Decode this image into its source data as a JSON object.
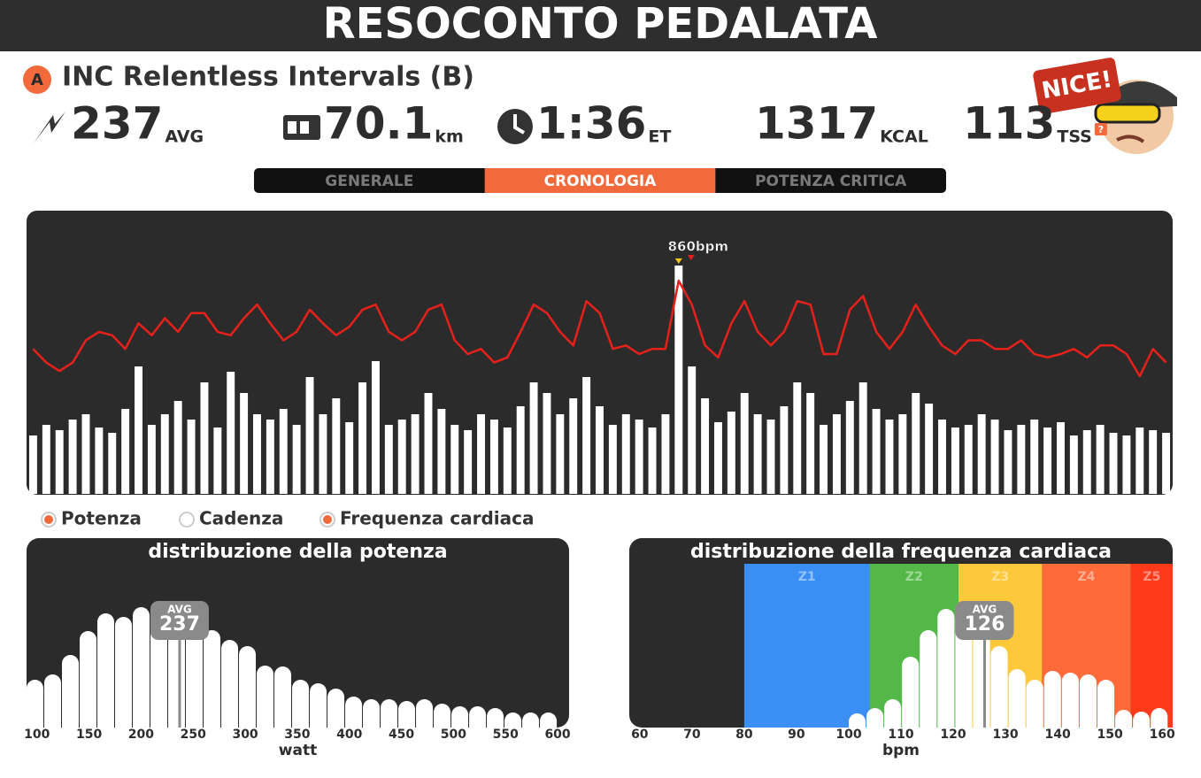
{
  "header": {
    "title": "RESOCONTO PEDALATA"
  },
  "ride": {
    "badge": "A",
    "name": "INC Relentless Intervals (B)"
  },
  "stats": [
    {
      "value": 237,
      "unit": "AVG"
    },
    {
      "value": 70.1,
      "unit": "km"
    },
    {
      "value": "1:36",
      "unit": "ET"
    },
    {
      "value": 1317,
      "unit": "KCAL"
    },
    {
      "value": 113,
      "unit": "TSS",
      "help": "?"
    }
  ],
  "avatar": {
    "text": "NICE!"
  },
  "tabs": {
    "items": [
      "GENERALE",
      "CRONOLOGIA",
      "POTENZA CRITICA"
    ],
    "active": 1
  },
  "legend": {
    "items": [
      "Potenza",
      "Cadenza",
      "Frequenza cardiaca"
    ],
    "selected": [
      true,
      false,
      true
    ]
  },
  "chart_data": [
    {
      "type": "timeline",
      "marker_label": "860bpm",
      "ylim": [
        0,
        1060
      ],
      "y2lim": [
        40,
        205
      ],
      "series": [
        {
          "color": "#ffffff",
          "values": [
            220,
            260,
            240,
            280,
            300,
            250,
            230,
            320,
            480,
            260,
            300,
            350,
            280,
            420,
            250,
            460,
            380,
            300,
            280,
            320,
            260,
            440,
            300,
            360,
            270,
            420,
            500,
            260,
            280,
            300,
            380,
            320,
            260,
            240,
            300,
            280,
            250,
            330,
            420,
            380,
            300,
            360,
            440,
            330,
            260,
            300,
            280,
            250,
            300,
            860,
            480,
            360,
            270,
            310,
            380,
            300,
            280,
            330,
            420,
            380,
            260,
            300,
            350,
            420,
            320,
            280,
            300,
            380,
            340,
            280,
            250,
            260,
            300,
            280,
            240,
            260,
            280,
            250,
            270,
            220,
            240,
            260,
            230,
            220,
            250,
            240,
            230
          ]
        },
        {
          "color": "#e8201a",
          "axis": "y2",
          "values": [
            125,
            117,
            112,
            117,
            130,
            135,
            133,
            125,
            140,
            133,
            143,
            135,
            146,
            146,
            135,
            133,
            143,
            151,
            140,
            130,
            135,
            148,
            140,
            133,
            138,
            148,
            151,
            135,
            130,
            135,
            148,
            151,
            130,
            122,
            125,
            117,
            120,
            135,
            151,
            146,
            135,
            127,
            153,
            146,
            125,
            127,
            122,
            125,
            125,
            165,
            151,
            127,
            120,
            140,
            153,
            135,
            127,
            135,
            153,
            151,
            122,
            122,
            148,
            156,
            135,
            125,
            135,
            151,
            138,
            127,
            122,
            130,
            130,
            125,
            125,
            130,
            122,
            120,
            122,
            125,
            120,
            127,
            127,
            122,
            109,
            125,
            117
          ]
        }
      ]
    },
    {
      "type": "histogram",
      "title": "distribuzione della potenza",
      "xlabel": "watt",
      "color": "#ffffff",
      "bins": [
        90,
        107,
        124,
        141,
        158,
        175,
        192,
        209,
        226,
        243,
        260,
        277,
        294,
        311,
        328,
        345,
        362,
        379,
        396,
        413,
        430,
        447,
        464,
        481,
        498,
        515,
        532,
        549,
        566,
        583,
        600
      ],
      "values": [
        54,
        60,
        82,
        109,
        129,
        125,
        136,
        134,
        136,
        122,
        110,
        99,
        92,
        70,
        69,
        54,
        50,
        44,
        35,
        32,
        32,
        30,
        32,
        27,
        24,
        24,
        22,
        17,
        17,
        17
      ],
      "xlim": [
        90,
        611
      ],
      "ylim": [
        0,
        200
      ],
      "xticks": [
        100,
        150,
        200,
        250,
        300,
        350,
        400,
        450,
        500,
        550,
        600
      ],
      "avg": {
        "label": "AVG",
        "value": 237
      }
    },
    {
      "type": "histogram",
      "title": "distribuzione della frequenza cardiaca",
      "xlabel": "bpm",
      "color": "#ffffff",
      "bins": [
        100,
        103.4,
        106.8,
        110.2,
        113.6,
        117,
        120.4,
        123.8,
        127.2,
        130.6,
        134,
        137.4,
        140.8,
        144.2,
        147.6,
        151,
        154.4,
        157.8,
        161.2
      ],
      "values": [
        16,
        22,
        32,
        80,
        110,
        134,
        132,
        120,
        92,
        66,
        54,
        64,
        62,
        60,
        54,
        20,
        18,
        22
      ],
      "xlim": [
        58,
        162
      ],
      "ylim": [
        0,
        200
      ],
      "xticks": [
        60,
        70,
        80,
        90,
        100,
        110,
        120,
        130,
        140,
        150,
        160
      ],
      "avg": {
        "label": "AVG",
        "value": 126
      },
      "zones": [
        {
          "name": "Z1",
          "from": 80,
          "to": 104,
          "color": "#3a8ff5"
        },
        {
          "name": "Z2",
          "from": 104,
          "to": 121,
          "color": "#53b848"
        },
        {
          "name": "Z3",
          "from": 121,
          "to": 137,
          "color": "#fdc93a"
        },
        {
          "name": "Z4",
          "from": 137,
          "to": 154,
          "color": "#fe6a3a"
        },
        {
          "name": "Z5",
          "from": 154,
          "to": 162,
          "color": "#fe3a1a"
        }
      ]
    }
  ]
}
